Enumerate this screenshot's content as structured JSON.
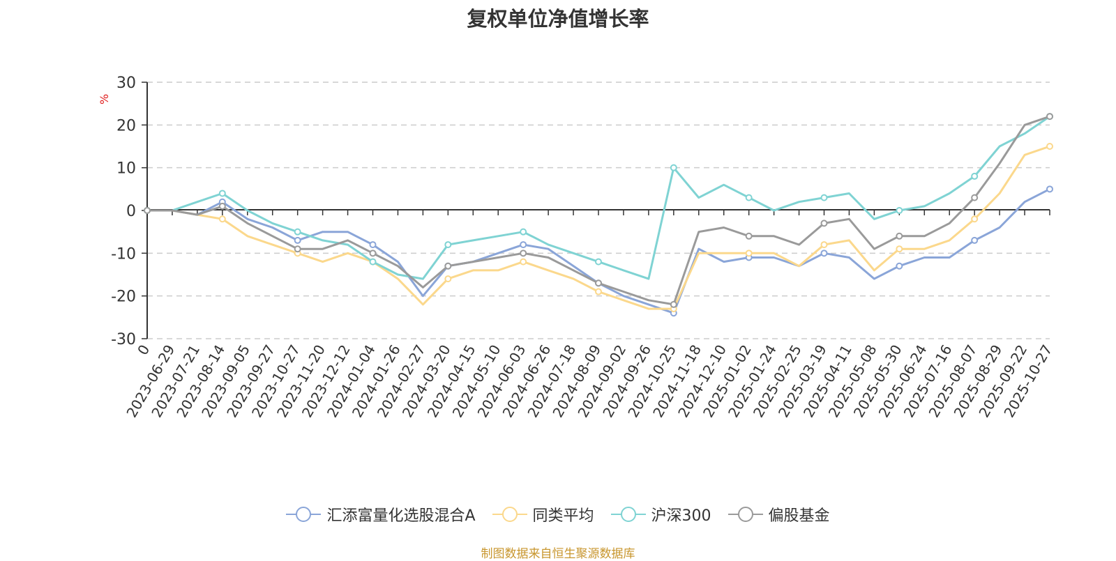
{
  "chart_data": {
    "type": "line",
    "title": "复权单位净值增长率",
    "ylabel": "%",
    "xlabel": "",
    "ylim": [
      -30,
      30
    ],
    "yticks": [
      "30",
      "20",
      "10",
      "0",
      "-10",
      "-20",
      "-30"
    ],
    "grid": true,
    "legend_position": "bottom",
    "categories": [
      "0",
      "2023-06-29",
      "2023-07-21",
      "2023-08-14",
      "2023-09-05",
      "2023-09-27",
      "2023-10-27",
      "2023-11-20",
      "2023-12-12",
      "2024-01-04",
      "2024-01-26",
      "2024-02-27",
      "2024-03-20",
      "2024-04-15",
      "2024-05-10",
      "2024-06-03",
      "2024-06-26",
      "2024-07-18",
      "2024-08-09",
      "2024-09-02",
      "2024-09-26",
      "2024-10-25",
      "2024-11-18",
      "2024-12-10",
      "2025-01-02",
      "2025-01-24",
      "2025-02-25",
      "2025-03-19",
      "2025-04-11",
      "2025-05-08",
      "2025-05-30",
      "2025-06-24",
      "2025-07-16",
      "2025-08-07",
      "2025-08-29",
      "2025-09-22",
      "2025-10-27"
    ],
    "series": [
      {
        "name": "汇添富量化选股混合A",
        "color": "#8aa5d8",
        "values": [
          0,
          0,
          -1,
          2,
          -2,
          -4,
          -7,
          -5,
          -5,
          -8,
          -12,
          -20,
          -13,
          -12,
          -10,
          -8,
          -9,
          -13,
          -17,
          -20,
          -22,
          -24,
          -9,
          -12,
          -11,
          -11,
          -13,
          -10,
          -11,
          -16,
          -13,
          -11,
          -11,
          -7,
          -4,
          2,
          5
        ]
      },
      {
        "name": "同类平均",
        "color": "#fbd88c",
        "values": [
          0,
          0,
          -1,
          -2,
          -6,
          -8,
          -10,
          -12,
          -10,
          -12,
          -16,
          -22,
          -16,
          -14,
          -14,
          -12,
          -14,
          -16,
          -19,
          -21,
          -23,
          -23,
          -10,
          -10,
          -10,
          -10,
          -13,
          -8,
          -7,
          -14,
          -9,
          -9,
          -7,
          -2,
          4,
          13,
          15
        ]
      },
      {
        "name": "沪深300",
        "color": "#7fd3d3",
        "values": [
          0,
          0,
          2,
          4,
          0,
          -3,
          -5,
          -7,
          -8,
          -12,
          -15,
          -16,
          -8,
          -7,
          -6,
          -5,
          -8,
          -10,
          -12,
          -14,
          -16,
          10,
          3,
          6,
          3,
          0,
          2,
          3,
          4,
          -2,
          0,
          1,
          4,
          8,
          15,
          18,
          22
        ]
      },
      {
        "name": "偏股基金",
        "color": "#9a9a9a",
        "values": [
          0,
          0,
          -1,
          1,
          -3,
          -6,
          -9,
          -9,
          -7,
          -10,
          -13,
          -18,
          -13,
          -12,
          -11,
          -10,
          -11,
          -14,
          -17,
          -19,
          -21,
          -22,
          -5,
          -4,
          -6,
          -6,
          -8,
          -3,
          -2,
          -9,
          -6,
          -6,
          -3,
          3,
          11,
          20,
          22
        ]
      }
    ]
  },
  "source_note": "制图数据来自恒生聚源数据库"
}
